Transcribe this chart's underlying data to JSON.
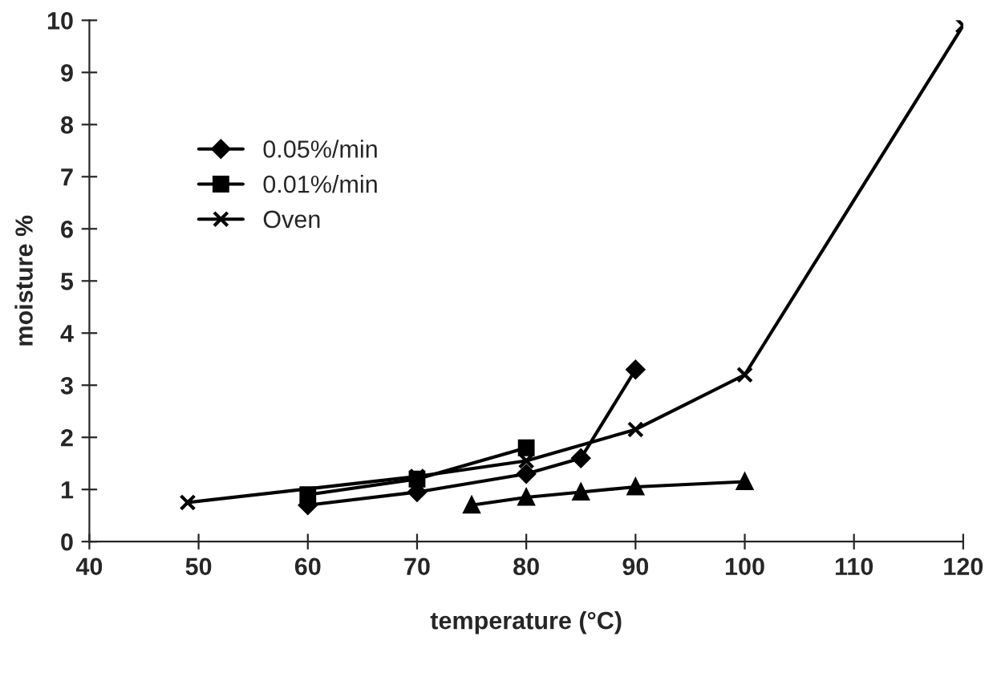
{
  "chart_data": {
    "type": "line",
    "xlabel": "temperature (°C)",
    "ylabel": "moisture %",
    "xlim": [
      40,
      120
    ],
    "xticks": [
      40,
      50,
      60,
      70,
      80,
      90,
      100,
      110,
      120
    ],
    "ylim": [
      0,
      10
    ],
    "yticks": [
      0,
      1,
      2,
      3,
      4,
      5,
      6,
      7,
      8,
      9,
      10
    ],
    "grid": false,
    "legend": "top left",
    "series": [
      {
        "name": "0.05%/min",
        "color": "#000000",
        "marker": "diamond",
        "x": [
          60,
          70,
          80,
          85,
          90
        ],
        "values": [
          0.7,
          0.95,
          1.3,
          1.6,
          3.3
        ]
      },
      {
        "name": "0.01%/min",
        "color": "#000000",
        "marker": "square",
        "x": [
          60,
          70,
          80
        ],
        "values": [
          0.9,
          1.2,
          1.8
        ]
      },
      {
        "color": "#000000",
        "marker": "triangle",
        "x": [
          75,
          80,
          85,
          90,
          100
        ],
        "values": [
          0.7,
          0.85,
          0.95,
          1.05,
          1.15
        ]
      },
      {
        "name": "Oven",
        "color": "#000000",
        "marker": "cross",
        "x": [
          49,
          70,
          80,
          90,
          100,
          120
        ],
        "values": [
          0.75,
          1.25,
          1.55,
          2.15,
          3.2,
          9.9
        ]
      }
    ]
  }
}
